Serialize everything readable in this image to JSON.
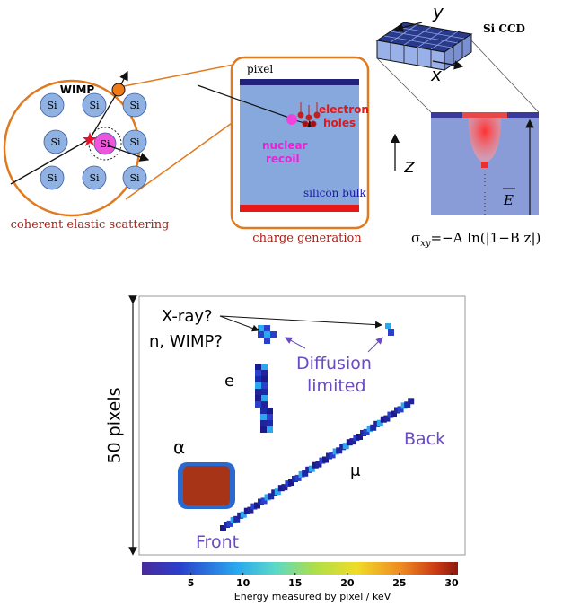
{
  "top_panel": {
    "scattering": {
      "wimp_label": "WIMP",
      "atoms": [
        "Si",
        "Si",
        "Si",
        "Si",
        "Si",
        "Si",
        "Si",
        "Si",
        "Si"
      ],
      "caption": "coherent elastic scattering"
    },
    "charge": {
      "pixel_label": "pixel",
      "carriers": [
        "electron",
        "holes"
      ],
      "recoil": [
        "nuclear",
        "recoil"
      ],
      "bulk_label": "silicon bulk",
      "axis_label": "z",
      "caption": "charge generation"
    },
    "ccd": {
      "y_label": "y",
      "x_label": "x",
      "title": "Si CCD",
      "field_label": "E",
      "formula": {
        "symbol": "σ",
        "subscript": "xy",
        "rest": "=−A ln(|1−B z|)"
      }
    }
  },
  "bottom_panel": {
    "scale_label": "50 pixels",
    "annotations": {
      "xray": "X-ray?",
      "wimp": "n, WIMP?",
      "diffusion": [
        "Diffusion",
        "limited"
      ],
      "electron": "e",
      "alpha": "α",
      "muon": "μ",
      "back": "Back",
      "front": "Front"
    },
    "colorbar": {
      "lim": [
        0.3,
        30.6
      ],
      "ticks": [
        5,
        10,
        15,
        20,
        25,
        30
      ],
      "label": "Energy measured by pixel / keV"
    }
  }
}
